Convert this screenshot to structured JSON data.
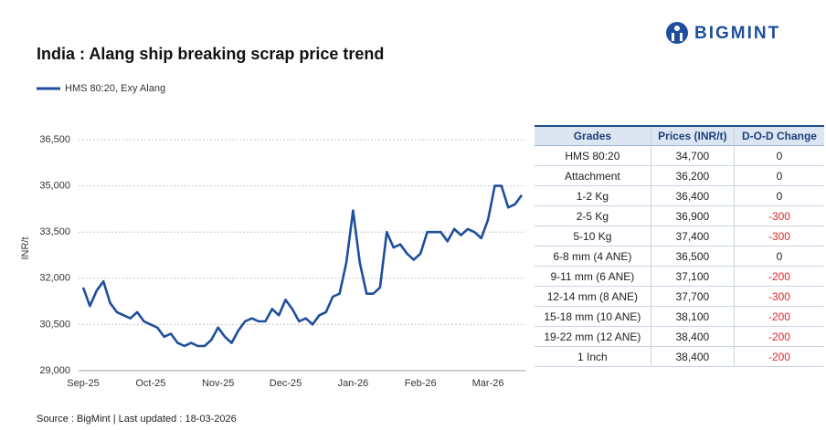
{
  "logo": "BIGMINT",
  "chart_data": {
    "type": "line",
    "title": "India : Alang ship breaking scrap price trend",
    "y_label": "INR/t",
    "categories": [
      "Sep-25",
      null,
      null,
      null,
      null,
      null,
      null,
      null,
      null,
      null,
      "Oct-25",
      null,
      null,
      null,
      null,
      null,
      null,
      null,
      null,
      null,
      "Nov-25",
      null,
      null,
      null,
      null,
      null,
      null,
      null,
      null,
      null,
      "Dec-25",
      null,
      null,
      null,
      null,
      null,
      null,
      null,
      null,
      null,
      "Jan-26",
      null,
      null,
      null,
      null,
      null,
      null,
      null,
      null,
      null,
      "Feb-26",
      null,
      null,
      null,
      null,
      null,
      null,
      null,
      null,
      null,
      "Mar-26",
      null,
      null,
      null,
      null,
      null
    ],
    "series": [
      {
        "name": "HMS 80:20, Exy Alang",
        "color": "#1f4e9c",
        "values": [
          31700,
          31100,
          31600,
          31900,
          31200,
          30900,
          30800,
          30700,
          30900,
          30600,
          30500,
          30400,
          30100,
          30200,
          29900,
          29800,
          29900,
          29800,
          29800,
          30000,
          30400,
          30100,
          29900,
          30300,
          30600,
          30700,
          30600,
          30600,
          31000,
          30800,
          31300,
          31000,
          30600,
          30700,
          30500,
          30800,
          30900,
          31400,
          31500,
          32500,
          34200,
          32500,
          31500,
          31500,
          31700,
          33500,
          33000,
          33100,
          32800,
          32600,
          32800,
          33500,
          33500,
          33500,
          33200,
          33600,
          33400,
          33600,
          33500,
          33300,
          33900,
          35000,
          35000,
          34300,
          34400,
          34700
        ]
      }
    ],
    "ylim": [
      29000,
      36500
    ],
    "yticks": [
      {
        "value": 29000,
        "label": "29,000"
      },
      {
        "value": 30500,
        "label": "30,500"
      },
      {
        "value": 32000,
        "label": "32,000"
      },
      {
        "value": 33500,
        "label": "33,500"
      },
      {
        "value": 35000,
        "label": "35,000"
      },
      {
        "value": 36500,
        "label": "36,500"
      }
    ],
    "grid": true
  },
  "table": {
    "headers": [
      "Grades",
      "Prices (INR/t)",
      "D-O-D Change"
    ],
    "rows": [
      [
        "HMS 80:20",
        "34,700",
        "0"
      ],
      [
        "Attachment",
        "36,200",
        "0"
      ],
      [
        "1-2 Kg",
        "36,400",
        "0"
      ],
      [
        "2-5 Kg",
        "36,900",
        "-300"
      ],
      [
        "5-10 Kg",
        "37,400",
        "-300"
      ],
      [
        "6-8 mm (4 ANE)",
        "36,500",
        "0"
      ],
      [
        "9-11 mm (6 ANE)",
        "37,100",
        "-200"
      ],
      [
        "12-14 mm (8 ANE)",
        "37,700",
        "-300"
      ],
      [
        "15-18 mm (10 ANE)",
        "38,100",
        "-200"
      ],
      [
        "19-22 mm (12 ANE)",
        "38,400",
        "-200"
      ],
      [
        "1 Inch",
        "38,400",
        "-200"
      ]
    ]
  },
  "source": "Source : BigMint | Last updated : 18-03-2026"
}
